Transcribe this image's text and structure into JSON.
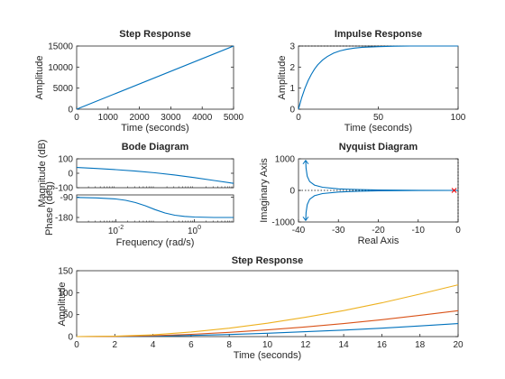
{
  "chart_data": [
    {
      "id": "step1",
      "type": "line",
      "title": "Step Response",
      "xlabel": "Time (seconds)",
      "ylabel": "Amplitude",
      "xlim": [
        0,
        5000
      ],
      "ylim": [
        0,
        15000
      ],
      "xticks": [
        "0",
        "1000",
        "2000",
        "3000",
        "4000",
        "5000"
      ],
      "xtick_values": [
        0,
        1000,
        2000,
        3000,
        4000,
        5000
      ],
      "yticks": [
        "0",
        "5000",
        "10000",
        "15000"
      ],
      "ytick_values": [
        0,
        5000,
        10000,
        15000
      ],
      "series": [
        {
          "color": "#0072bd",
          "x": [
            0,
            5000
          ],
          "y": [
            0,
            15000
          ]
        }
      ]
    },
    {
      "id": "impulse",
      "type": "line",
      "title": "Impulse Response",
      "xlabel": "Time (seconds)",
      "ylabel": "Amplitude",
      "xlim": [
        0,
        100
      ],
      "ylim": [
        0,
        3
      ],
      "xticks": [
        "0",
        "50",
        "100"
      ],
      "xtick_values": [
        0,
        50,
        100
      ],
      "yticks": [
        "0",
        "1",
        "2",
        "3"
      ],
      "ytick_values": [
        0,
        1,
        2,
        3
      ],
      "steady_state": 3,
      "series": [
        {
          "color": "#0072bd",
          "x": [
            0,
            2,
            4,
            6,
            8,
            10,
            12,
            15,
            18,
            22,
            26,
            30,
            35,
            40,
            50,
            60,
            70,
            80,
            90,
            100
          ],
          "y": [
            0,
            0.54,
            0.99,
            1.35,
            1.65,
            1.9,
            2.1,
            2.33,
            2.5,
            2.66,
            2.77,
            2.84,
            2.9,
            2.94,
            2.97,
            2.99,
            3.0,
            3.0,
            3.0,
            3.0
          ]
        }
      ]
    },
    {
      "id": "bode_mag",
      "type": "line",
      "title": "Bode Diagram",
      "ylabel": "Magnitude (dB)",
      "xscale": "log",
      "xlim_log10": [
        -3,
        1
      ],
      "ylim": [
        -100,
        100
      ],
      "yticks": [
        "100",
        "0",
        "-100"
      ],
      "ytick_values": [
        100,
        0,
        -100
      ],
      "series": [
        {
          "color": "#0072bd",
          "x_log10": [
            -3,
            -2.5,
            -2,
            -1.5,
            -1,
            -0.5,
            0,
            0.5,
            1
          ],
          "y": [
            40,
            33,
            25,
            15,
            3,
            -12,
            -30,
            -50,
            -70
          ]
        }
      ]
    },
    {
      "id": "bode_phase",
      "type": "line",
      "xlabel": "Frequency  (rad/s)",
      "ylabel": "Phase (deg)",
      "xscale": "log",
      "xlim_log10": [
        -3,
        1
      ],
      "ylim": [
        -200,
        -80
      ],
      "xticks": [
        "10",
        "10"
      ],
      "xtick_exponents": [
        "-2",
        "0"
      ],
      "xtick_values_log10": [
        -2,
        0
      ],
      "yticks": [
        "-90",
        "-180"
      ],
      "ytick_values": [
        -90,
        -180
      ],
      "series": [
        {
          "color": "#0072bd",
          "x_log10": [
            -3,
            -2.5,
            -2,
            -1.75,
            -1.5,
            -1.25,
            -1,
            -0.75,
            -0.5,
            -0.25,
            0,
            0.5,
            1
          ],
          "y": [
            -91,
            -93,
            -98,
            -104,
            -114,
            -128,
            -145,
            -160,
            -170,
            -175,
            -178,
            -180,
            -180
          ]
        }
      ]
    },
    {
      "id": "nyquist",
      "type": "line",
      "title": "Nyquist Diagram",
      "xlabel": "Real Axis",
      "ylabel": "Imaginary Axis",
      "xlim": [
        -40,
        0
      ],
      "ylim": [
        -1000,
        1000
      ],
      "xticks": [
        "-40",
        "-30",
        "-20",
        "-10",
        "0"
      ],
      "xtick_values": [
        -40,
        -30,
        -20,
        -10,
        0
      ],
      "yticks": [
        "1000",
        "0",
        "-1000"
      ],
      "ytick_values": [
        1000,
        0,
        -1000
      ],
      "critical_point": [
        -1,
        0
      ],
      "series": [
        {
          "color": "#0072bd",
          "x": [
            -38.2,
            -38.1,
            -37.8,
            -37.2,
            -36,
            -34,
            -30,
            -25,
            -20,
            -10,
            0
          ],
          "y": [
            950,
            700,
            450,
            280,
            170,
            100,
            50,
            25,
            12,
            3,
            0
          ]
        },
        {
          "color": "#0072bd",
          "x": [
            -38.2,
            -38.1,
            -37.8,
            -37.2,
            -36,
            -34,
            -30,
            -25,
            -20,
            -10,
            0
          ],
          "y": [
            -950,
            -700,
            -450,
            -280,
            -170,
            -100,
            -50,
            -25,
            -12,
            -3,
            0
          ]
        }
      ]
    },
    {
      "id": "step2",
      "type": "line",
      "title": "Step Response",
      "xlabel": "Time (seconds)",
      "ylabel": "Amplitude",
      "xlim": [
        0,
        20
      ],
      "ylim": [
        0,
        150
      ],
      "xticks": [
        "0",
        "2",
        "4",
        "6",
        "8",
        "10",
        "12",
        "14",
        "16",
        "18",
        "20"
      ],
      "xtick_values": [
        0,
        2,
        4,
        6,
        8,
        10,
        12,
        14,
        16,
        18,
        20
      ],
      "yticks": [
        "0",
        "50",
        "100",
        "150"
      ],
      "ytick_values": [
        0,
        50,
        100,
        150
      ],
      "series": [
        {
          "color": "#0072bd",
          "x": [
            0,
            2,
            4,
            6,
            8,
            10,
            12,
            14,
            16,
            18,
            20
          ],
          "y": [
            0,
            0.2,
            1,
            2.6,
            4.8,
            7.6,
            11,
            14.8,
            19.2,
            24.2,
            29.5
          ]
        },
        {
          "color": "#d95319",
          "x": [
            0,
            2,
            4,
            6,
            8,
            10,
            12,
            14,
            16,
            18,
            20
          ],
          "y": [
            0,
            0.4,
            2,
            5.2,
            9.6,
            15.2,
            22,
            29.6,
            38.4,
            48.4,
            59
          ]
        },
        {
          "color": "#edb120",
          "x": [
            0,
            2,
            4,
            6,
            8,
            10,
            12,
            14,
            16,
            18,
            20
          ],
          "y": [
            0,
            0.8,
            4,
            10.4,
            19.2,
            30.4,
            44,
            59.2,
            76.8,
            96.8,
            118
          ]
        }
      ]
    }
  ]
}
